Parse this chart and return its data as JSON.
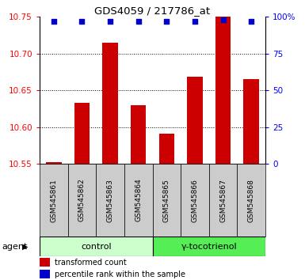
{
  "title": "GDS4059 / 217786_at",
  "samples": [
    "GSM545861",
    "GSM545862",
    "GSM545863",
    "GSM545864",
    "GSM545865",
    "GSM545866",
    "GSM545867",
    "GSM545868"
  ],
  "bar_values": [
    10.552,
    10.633,
    10.715,
    10.63,
    10.591,
    10.668,
    10.755,
    10.665
  ],
  "percentile_values": [
    97,
    97,
    97,
    97,
    97,
    97,
    98,
    97
  ],
  "ylim_left": [
    10.55,
    10.75
  ],
  "ylim_right": [
    0,
    100
  ],
  "yticks_left": [
    10.55,
    10.6,
    10.65,
    10.7,
    10.75
  ],
  "yticks_right": [
    0,
    25,
    50,
    75,
    100
  ],
  "bar_color": "#cc0000",
  "dot_color": "#0000cc",
  "n_control": 4,
  "n_treatment": 4,
  "control_label": "control",
  "treatment_label": "γ-tocotrienol",
  "agent_label": "agent",
  "legend_bar": "transformed count",
  "legend_dot": "percentile rank within the sample",
  "control_bg": "#ccffcc",
  "treatment_bg": "#55ee55",
  "sample_bg": "#cccccc",
  "bar_width": 0.55
}
